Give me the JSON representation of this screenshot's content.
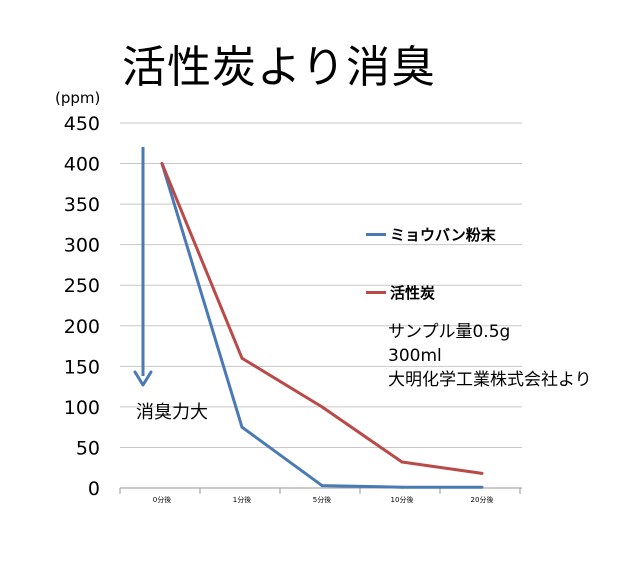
{
  "title": "活性炭より消臭",
  "chart_data": {
    "type": "line",
    "title": "活性炭より消臭",
    "ylabel": "(ppm)",
    "xlabel": "",
    "categories": [
      "0分後",
      "1分後",
      "5分後",
      "10分後",
      "20分後"
    ],
    "ylim": [
      0,
      450
    ],
    "yticks": [
      0,
      50,
      100,
      150,
      200,
      250,
      300,
      350,
      400,
      450
    ],
    "grid": true,
    "legend": "right",
    "series": [
      {
        "name": "ミョウバン粉末",
        "color": "#4a7ab5",
        "values": [
          400,
          75,
          3,
          1,
          1
        ]
      },
      {
        "name": "活性炭",
        "color": "#b94a48",
        "values": [
          400,
          160,
          100,
          32,
          18
        ]
      }
    ]
  },
  "notes": {
    "line1": "サンプル量0.5g",
    "line2": "300ml",
    "line3": "大明化学工業株式会社より"
  },
  "arrow": {
    "label": "消臭力大",
    "color": "#4a7ab5"
  }
}
